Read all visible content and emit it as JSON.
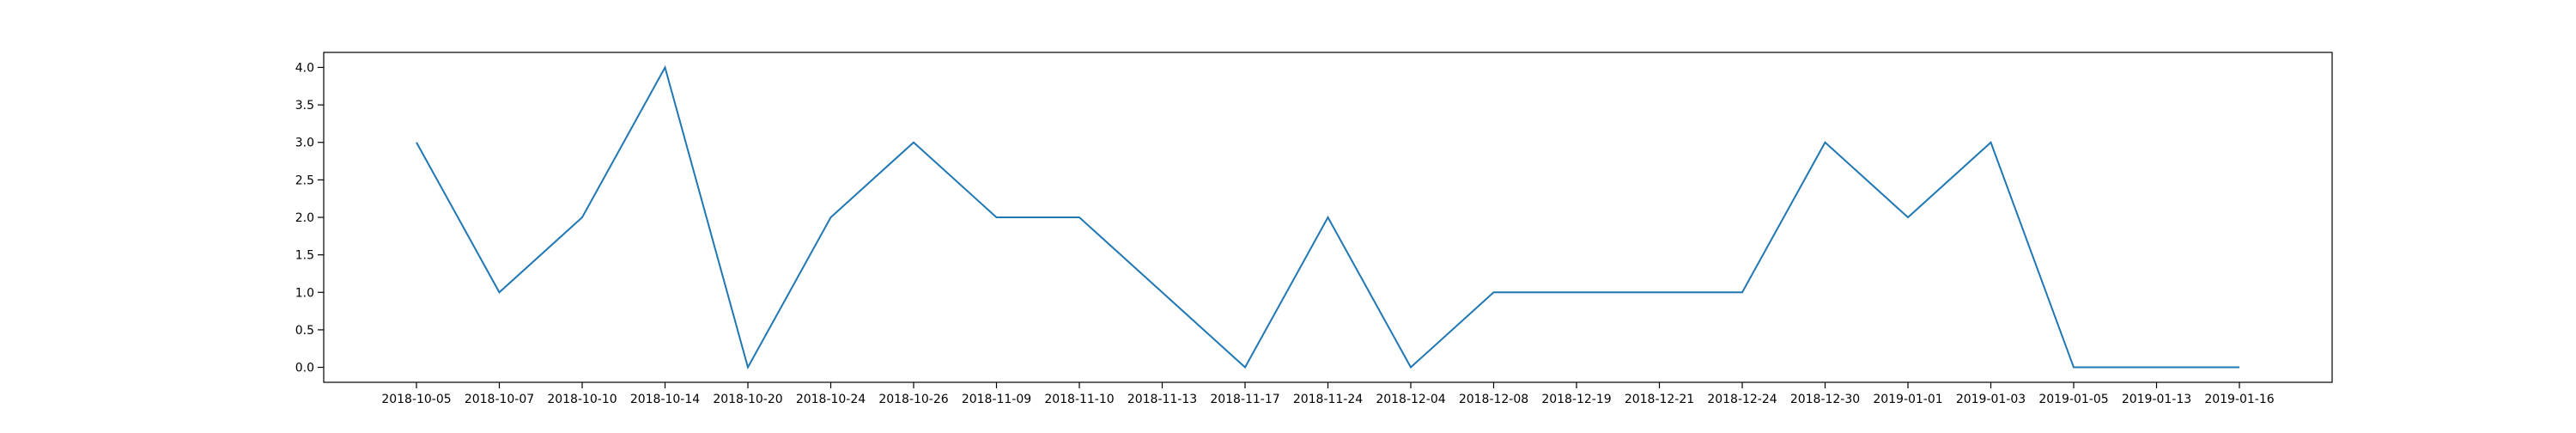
{
  "chart_data": {
    "type": "line",
    "title": "",
    "xlabel": "",
    "ylabel": "",
    "x": [
      "2018-10-05",
      "2018-10-07",
      "2018-10-10",
      "2018-10-14",
      "2018-10-20",
      "2018-10-24",
      "2018-10-26",
      "2018-11-09",
      "2018-11-10",
      "2018-11-13",
      "2018-11-17",
      "2018-11-24",
      "2018-12-04",
      "2018-12-08",
      "2018-12-19",
      "2018-12-21",
      "2018-12-24",
      "2018-12-30",
      "2019-01-01",
      "2019-01-03",
      "2019-01-05",
      "2019-01-13",
      "2019-01-16"
    ],
    "series": [
      {
        "values": [
          3,
          1,
          2,
          4,
          0,
          2,
          3,
          2,
          2,
          1,
          0,
          2,
          0,
          1,
          1,
          1,
          1,
          3,
          2,
          3,
          0,
          0,
          0
        ],
        "color": "#1f77b4"
      }
    ],
    "ylim": [
      -0.2,
      4.2
    ],
    "yticks": [
      "0.0",
      "0.5",
      "1.0",
      "1.5",
      "2.0",
      "2.5",
      "3.0",
      "3.5",
      "4.0"
    ],
    "grid": false,
    "legend": "none"
  }
}
